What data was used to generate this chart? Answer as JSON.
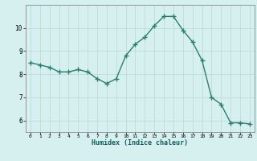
{
  "x": [
    0,
    1,
    2,
    3,
    4,
    5,
    6,
    7,
    8,
    9,
    10,
    11,
    12,
    13,
    14,
    15,
    16,
    17,
    18,
    19,
    20,
    21,
    22,
    23
  ],
  "y": [
    8.5,
    8.4,
    8.3,
    8.1,
    8.1,
    8.2,
    8.1,
    7.8,
    7.6,
    7.8,
    8.8,
    9.3,
    9.6,
    10.1,
    10.5,
    10.5,
    9.9,
    9.4,
    8.6,
    7.0,
    6.7,
    5.9,
    5.9,
    5.85
  ],
  "title": "",
  "xlabel": "Humidex (Indice chaleur)",
  "ylabel": "",
  "xlim": [
    -0.5,
    23.5
  ],
  "ylim": [
    5.5,
    11.0
  ],
  "yticks": [
    6,
    7,
    8,
    9,
    10
  ],
  "xticks": [
    0,
    1,
    2,
    3,
    4,
    5,
    6,
    7,
    8,
    9,
    10,
    11,
    12,
    13,
    14,
    15,
    16,
    17,
    18,
    19,
    20,
    21,
    22,
    23
  ],
  "line_color": "#2e7d6e",
  "bg_color": "#d6f0f0",
  "grid_color": "#b8d8d8",
  "marker": "+",
  "marker_size": 4,
  "linewidth": 1.0
}
